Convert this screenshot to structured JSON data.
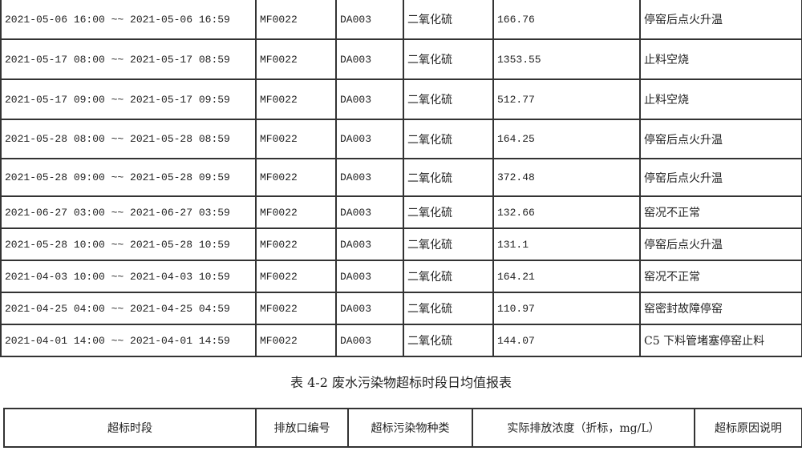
{
  "table1": {
    "rows": [
      {
        "period": "2021-05-06 16:00 ~~ 2021-05-06 16:59",
        "company": "MF0022",
        "outlet": "DA003",
        "pollutant": "二氧化硫",
        "value": "166.76",
        "reason": "停窑后点火升温"
      },
      {
        "period": "2021-05-17 08:00 ~~ 2021-05-17 08:59",
        "company": "MF0022",
        "outlet": "DA003",
        "pollutant": "二氧化硫",
        "value": "1353.55",
        "reason": "止料空烧"
      },
      {
        "period": "2021-05-17 09:00 ~~ 2021-05-17 09:59",
        "company": "MF0022",
        "outlet": "DA003",
        "pollutant": "二氧化硫",
        "value": "512.77",
        "reason": "止料空烧"
      },
      {
        "period": "2021-05-28 08:00 ~~ 2021-05-28 08:59",
        "company": "MF0022",
        "outlet": "DA003",
        "pollutant": "二氧化硫",
        "value": "164.25",
        "reason": "停窑后点火升温"
      },
      {
        "period": "2021-05-28 09:00 ~~ 2021-05-28 09:59",
        "company": "MF0022",
        "outlet": "DA003",
        "pollutant": "二氧化硫",
        "value": "372.48",
        "reason": "停窑后点火升温"
      },
      {
        "period": "2021-06-27 03:00 ~~ 2021-06-27 03:59",
        "company": "MF0022",
        "outlet": "DA003",
        "pollutant": "二氧化硫",
        "value": "132.66",
        "reason": "窑况不正常"
      },
      {
        "period": "2021-05-28 10:00 ~~ 2021-05-28 10:59",
        "company": "MF0022",
        "outlet": "DA003",
        "pollutant": "二氧化硫",
        "value": "131.1",
        "reason": "停窑后点火升温"
      },
      {
        "period": "2021-04-03 10:00 ~~ 2021-04-03 10:59",
        "company": "MF0022",
        "outlet": "DA003",
        "pollutant": "二氧化硫",
        "value": "164.21",
        "reason": "窑况不正常"
      },
      {
        "period": "2021-04-25 04:00 ~~ 2021-04-25 04:59",
        "company": "MF0022",
        "outlet": "DA003",
        "pollutant": "二氧化硫",
        "value": "110.97",
        "reason": "窑密封故障停窑"
      },
      {
        "period": "2021-04-01 14:00 ~~ 2021-04-01 14:59",
        "company": "MF0022",
        "outlet": "DA003",
        "pollutant": "二氧化硫",
        "value": "144.07",
        "reason": "C5 下料管堵塞停窑止料"
      }
    ]
  },
  "caption": "表 4-2 废水污染物超标时段日均值报表",
  "table2": {
    "headers": [
      "超标时段",
      "排放口编号",
      "超标污染物种类",
      "实际排放浓度（折标，mg/L）",
      "超标原因说明"
    ]
  }
}
